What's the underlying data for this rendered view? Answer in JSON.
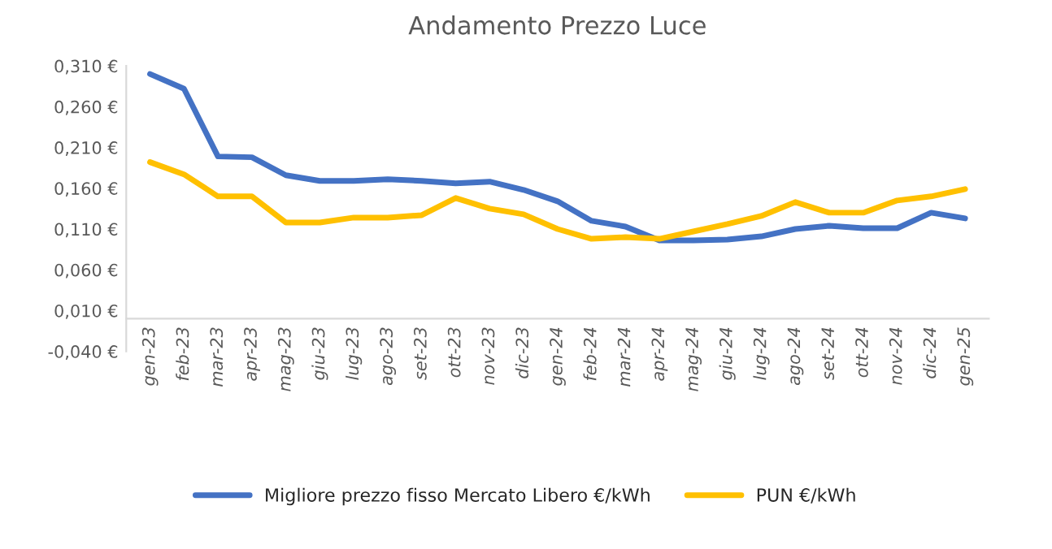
{
  "chart_data": {
    "type": "line",
    "title": "Andamento Prezzo Luce",
    "categories": [
      "gen-23",
      "feb-23",
      "mar-23",
      "apr-23",
      "mag-23",
      "giu-23",
      "lug-23",
      "ago-23",
      "set-23",
      "ott-23",
      "nov-23",
      "dic-23",
      "gen-24",
      "feb-24",
      "mar-24",
      "apr-24",
      "mag-24",
      "giu-24",
      "lug-24",
      "ago-24",
      "set-24",
      "ott-24",
      "nov-24",
      "dic-24",
      "gen-25"
    ],
    "series": [
      {
        "name": "Migliore prezzo fisso Mercato Libero €/kWh",
        "color": "#4472c4",
        "values": [
          0.3,
          0.282,
          0.199,
          0.198,
          0.176,
          0.169,
          0.169,
          0.171,
          0.169,
          0.166,
          0.168,
          0.158,
          0.144,
          0.12,
          0.113,
          0.096,
          0.096,
          0.097,
          0.101,
          0.11,
          0.114,
          0.111,
          0.111,
          0.13,
          0.123
        ]
      },
      {
        "name": "PUN €/kWh",
        "color": "#ffc000",
        "values": [
          0.192,
          0.177,
          0.15,
          0.15,
          0.118,
          0.118,
          0.124,
          0.124,
          0.127,
          0.148,
          0.135,
          0.128,
          0.11,
          0.098,
          0.1,
          0.098,
          0.107,
          0.116,
          0.126,
          0.143,
          0.13,
          0.13,
          0.145,
          0.15,
          0.159
        ]
      }
    ],
    "ylim": [
      -0.04,
      0.31
    ],
    "yticks": [
      {
        "value": -0.04,
        "label": "-0,040 €"
      },
      {
        "value": 0.01,
        "label": "0,010 €"
      },
      {
        "value": 0.06,
        "label": "0,060 €"
      },
      {
        "value": 0.11,
        "label": "0,110 €"
      },
      {
        "value": 0.16,
        "label": "0,160 €"
      },
      {
        "value": 0.21,
        "label": "0,210 €"
      },
      {
        "value": 0.26,
        "label": "0,260 €"
      },
      {
        "value": 0.31,
        "label": "0,310 €"
      }
    ],
    "grid": false,
    "legend": "bottom",
    "marker": "none",
    "line_style": "solid"
  }
}
